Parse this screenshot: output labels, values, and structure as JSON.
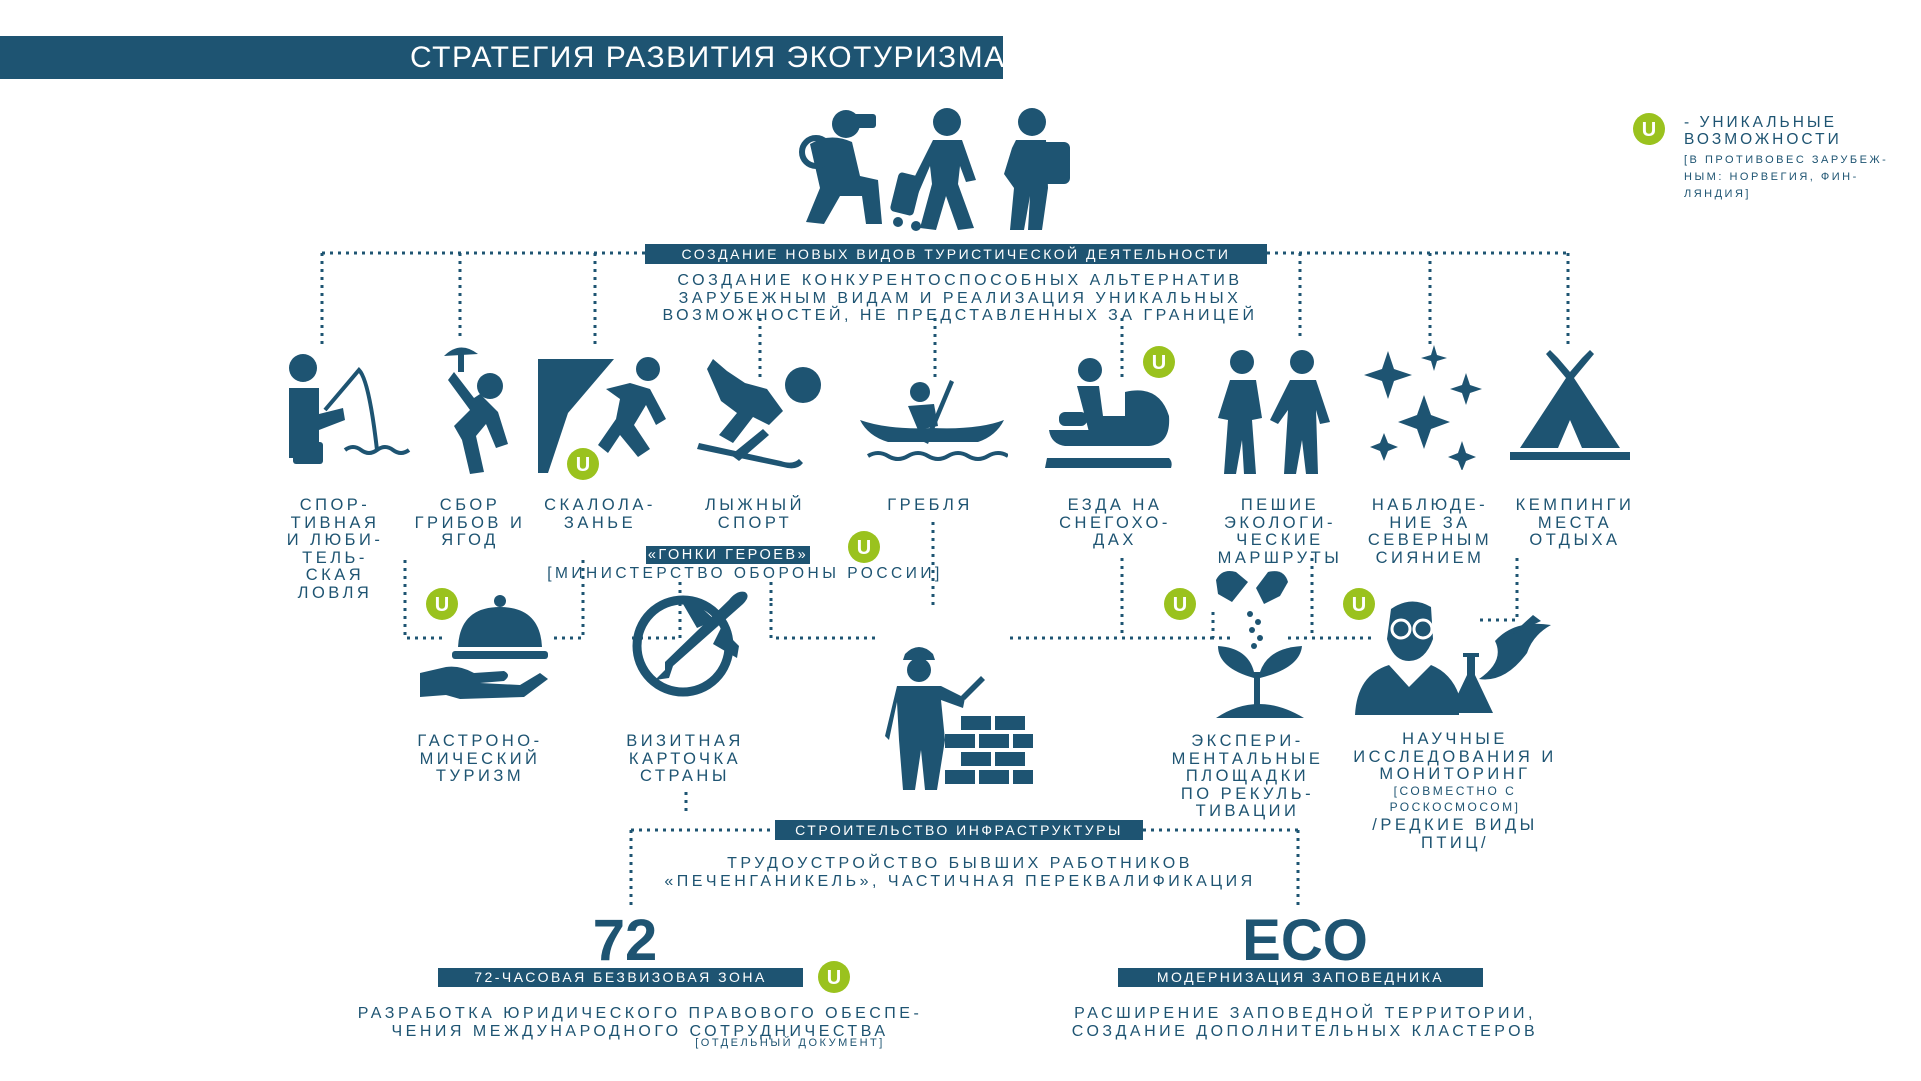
{
  "title": "СТРАТЕГИЯ РАЗВИТИЯ ЭКОТУРИЗМА",
  "colors": {
    "primary": "#1e5472",
    "accent": "#9ac21e",
    "background": "#ffffff"
  },
  "legend": {
    "marker": "U",
    "text": "- УНИКАЛЬНЫЕ\nВОЗМОЖНОСТИ",
    "note": "[В ПРОТИВОВЕС ЗАРУБЕЖ-\nНЫМ: НОРВЕГИЯ, ФИН-\nЛЯНДИЯ]"
  },
  "top": {
    "heading": "СОЗДАНИЕ НОВЫХ ВИДОВ ТУРИСТИЧЕСКОЙ ДЕЯТЕЛЬНОСТИ",
    "description": "СОЗДАНИЕ КОНКУРЕНТОСПОСОБНЫХ АЛЬТЕРНАТИВ\nЗАРУБЕЖНЫМ ВИДАМ И РЕАЛИЗАЦИЯ УНИКАЛЬНЫХ\nВОЗМОЖНОСТЕЙ, НЕ ПРЕДСТАВЛЕННЫХ ЗА ГРАНИЦЕЙ",
    "icon": "tourists-icon"
  },
  "activities": [
    {
      "label": "СПОР-\nТИВНАЯ\nИ ЛЮБИ-\nТЕЛЬ-\nСКАЯ\nЛОВЛЯ",
      "icon": "fishing-icon"
    },
    {
      "label": "СБОР\nГРИБОВ И\nЯГОД",
      "icon": "mushroom-picking-icon"
    },
    {
      "label": "СКАЛОЛА-\nЗАНЬЕ",
      "icon": "climbing-icon",
      "unique": "U"
    },
    {
      "label": "ЛЫЖНЫЙ\nСПОРТ",
      "icon": "skiing-icon"
    },
    {
      "label": "ГРЕБЛЯ",
      "icon": "rowing-icon"
    },
    {
      "label": "ЕЗДА НА\nСНЕГОХО-\nДАХ",
      "icon": "snowmobile-icon",
      "unique": "U"
    },
    {
      "label": "ПЕШИЕ\nЭКОЛОГИ-\nЧЕСКИЕ\nМАРШРУТЫ",
      "icon": "hiking-icon"
    },
    {
      "label": "НАБЛЮДЕ-\nНИЕ ЗА\nСЕВЕРНЫМ\nСИЯНИЕМ",
      "icon": "northern-lights-icon"
    },
    {
      "label": "КЕМПИНГИ\nМЕСТА\nОТДЫХА",
      "icon": "tent-icon"
    }
  ],
  "heroes": {
    "title": "«ГОНКИ ГЕРОЕВ»",
    "subtitle": "[МИНИСТЕРСТВО ОБОРОНЫ РОССИИ]",
    "unique": "U"
  },
  "middle": [
    {
      "label": "ГАСТРОНО-\nМИЧЕСКИЙ\nТУРИЗМ",
      "icon": "gastronomy-icon",
      "unique": "U"
    },
    {
      "label": "ВИЗИТНАЯ\nКАРТОЧКА\nСТРАНЫ",
      "icon": "plane-globe-icon"
    },
    {
      "label": "ЭКСПЕРИ-\nМЕНТАЛЬНЫЕ\nПЛОЩАДКИ\nПО РЕКУЛЬ-\nТИВАЦИИ",
      "icon": "recultivation-icon",
      "unique": "U"
    },
    {
      "label": "НАУЧНЫЕ\nИССЛЕДОВАНИЯ И\nМОНИТОРИНГ",
      "note": "[СОВМЕСТНО С\nРОСКОСМОСОМ]",
      "extra": "/РЕДКИЕ ВИДЫ\nПТИЦ/",
      "icon": "scientist-icon",
      "unique": "U"
    }
  ],
  "infrastructure": {
    "heading": "СТРОИТЕЛЬСТВО ИНФРАСТРУКТУРЫ",
    "description": "ТРУДОУСТРОЙСТВО БЫВШИХ РАБОТНИКОВ\n«ПЕЧЕНГАНИКЕЛЬ», ЧАСТИЧНАЯ ПЕРЕКВАЛИФИКАЦИЯ",
    "icon": "builder-icon"
  },
  "visa": {
    "big": "72",
    "heading": "72-ЧАСОВАЯ БЕЗВИЗОВАЯ ЗОНА",
    "description": "РАЗРАБОТКА ЮРИДИЧЕСКОГО ПРАВОВОГО ОБЕСПЕ-\nЧЕНИЯ МЕЖДУНАРОДНОГО СОТРУДНИЧЕСТВА",
    "note": "[ОТДЕЛЬНЫЙ ДОКУМЕНТ]",
    "unique": "U"
  },
  "eco": {
    "big": "ECO",
    "heading": "МОДЕРНИЗАЦИЯ ЗАПОВЕДНИКА",
    "description": "РАСШИРЕНИЕ ЗАПОВЕДНОЙ ТЕРРИТОРИИ,\nСОЗДАНИЕ ДОПОЛНИТЕЛЬНЫХ КЛАСТЕРОВ"
  }
}
